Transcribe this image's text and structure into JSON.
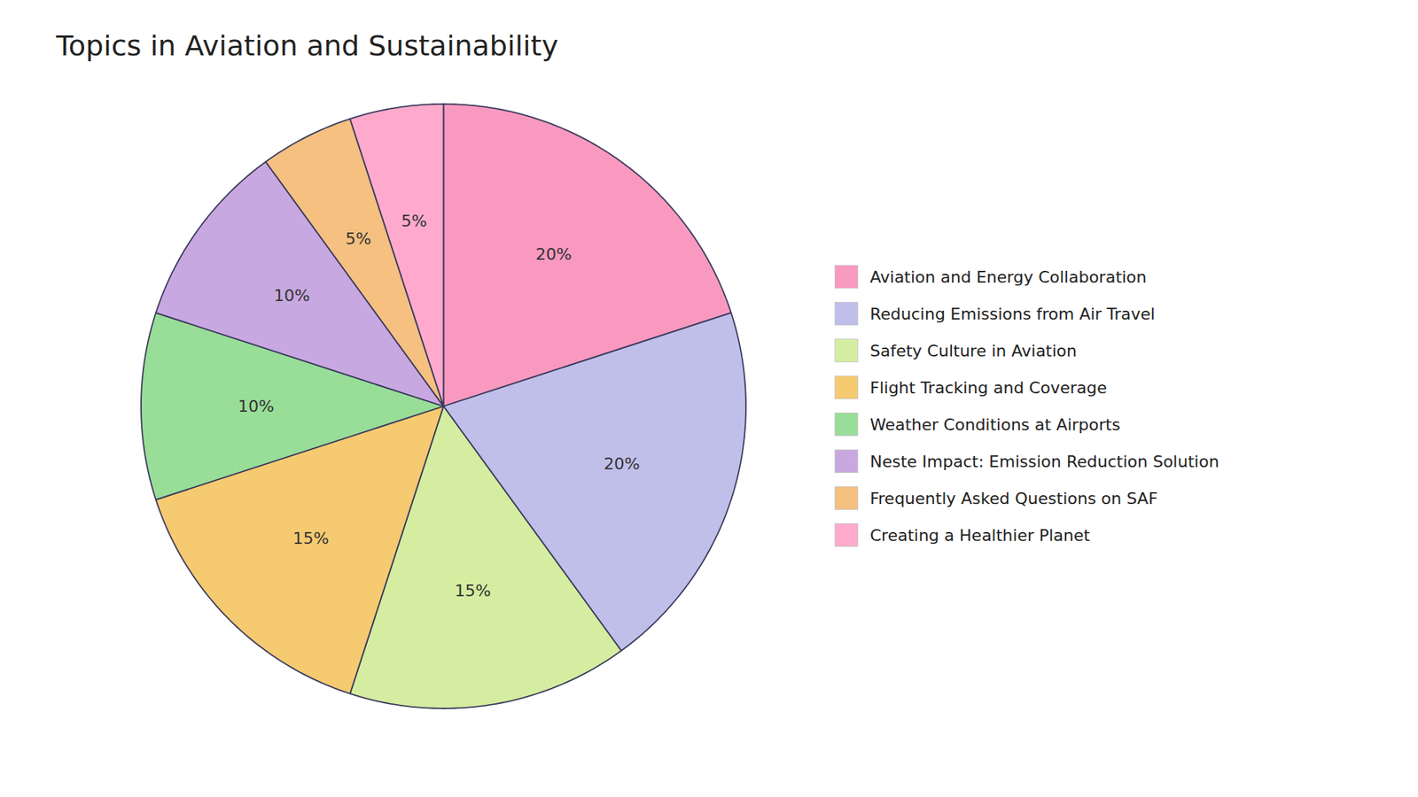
{
  "chart_data": {
    "type": "pie",
    "title": "Topics in Aviation and Sustainability",
    "categories": [
      "Aviation and Energy Collaboration",
      "Reducing Emissions from Air Travel",
      "Safety Culture in Aviation",
      "Flight Tracking and Coverage",
      "Weather Conditions at Airports",
      "Neste Impact: Emission Reduction Solution",
      "Frequently Asked Questions on SAF",
      "Creating a Healthier Planet"
    ],
    "values": [
      20,
      20,
      15,
      15,
      10,
      10,
      5,
      5
    ],
    "value_labels": [
      "20%",
      "20%",
      "15%",
      "15%",
      "10%",
      "10%",
      "5%",
      "5%"
    ],
    "colors": [
      "#F999C0",
      "#C0BFEA",
      "#D4EDA0",
      "#F5CA70",
      "#98DD98",
      "#C8A8E0",
      "#F5C080",
      "#FFAACC"
    ],
    "data_labels": true,
    "legend": "right"
  }
}
